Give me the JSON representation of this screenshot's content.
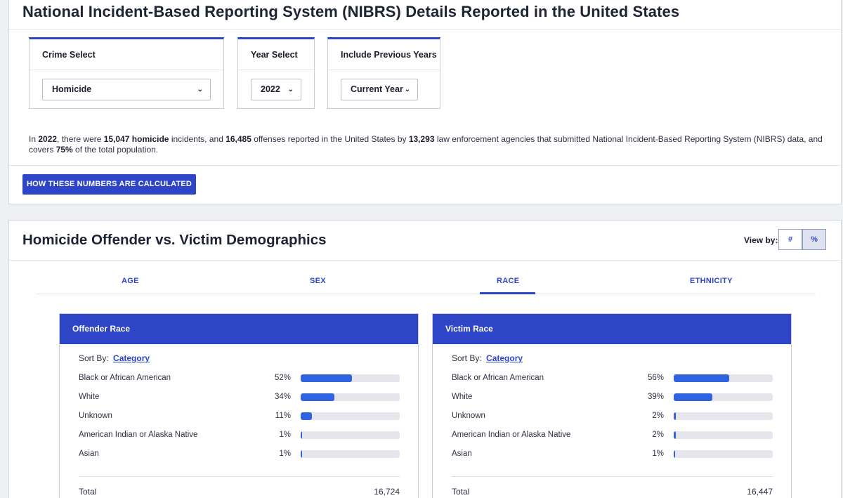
{
  "header": {
    "title": "National Incident-Based Reporting System (NIBRS) Details Reported in the United States"
  },
  "filters": {
    "crime": {
      "label": "Crime Select",
      "value": "Homicide"
    },
    "year": {
      "label": "Year Select",
      "value": "2022"
    },
    "previous": {
      "label": "Include Previous Years",
      "value": "Current Year"
    }
  },
  "summary": {
    "p1": "In ",
    "year": "2022",
    "p2": ", there were ",
    "incidents": "15,047",
    "p3": " ",
    "crime": "homicide",
    "p4": " incidents, and ",
    "offenses": "16,485",
    "p5": " offenses reported in the United States by ",
    "agencies": "13,293",
    "p6": " law enforcement agencies that submitted National Incident-Based Reporting System (NIBRS) data, and covers ",
    "coverage": "75%",
    "p7": " of the total population."
  },
  "calc_button": "HOW THESE NUMBERS ARE CALCULATED",
  "demographics": {
    "title": "Homicide Offender vs. Victim Demographics",
    "view_by_label": "View by:",
    "view_count": "#",
    "view_percent": "%",
    "tabs": [
      "AGE",
      "SEX",
      "RACE",
      "ETHNICITY"
    ],
    "active_tab": "RACE"
  },
  "offender": {
    "title": "Offender Race",
    "sort_label": "Sort By:",
    "sort_value": "Category",
    "rows": [
      {
        "label": "Black or African American",
        "value": "52%",
        "pct": 52
      },
      {
        "label": "White",
        "value": "34%",
        "pct": 34
      },
      {
        "label": "Unknown",
        "value": "11%",
        "pct": 11
      },
      {
        "label": "American Indian or Alaska Native",
        "value": "1%",
        "pct": 1
      },
      {
        "label": "Asian",
        "value": "1%",
        "pct": 1
      }
    ],
    "total_label": "Total",
    "total_value": "16,724"
  },
  "victim": {
    "title": "Victim Race",
    "sort_label": "Sort By:",
    "sort_value": "Category",
    "rows": [
      {
        "label": "Black or African American",
        "value": "56%",
        "pct": 56
      },
      {
        "label": "White",
        "value": "39%",
        "pct": 39
      },
      {
        "label": "Unknown",
        "value": "2%",
        "pct": 2
      },
      {
        "label": "American Indian or Alaska Native",
        "value": "2%",
        "pct": 2
      },
      {
        "label": "Asian",
        "value": "1%",
        "pct": 1
      }
    ],
    "total_label": "Total",
    "total_value": "16,447"
  },
  "icons": {
    "dropdown": "chevron-down-icon"
  },
  "colors": {
    "accent": "#2e45c7",
    "bar_fill": "#2f63e0",
    "bar_track": "#e4e6ec"
  }
}
